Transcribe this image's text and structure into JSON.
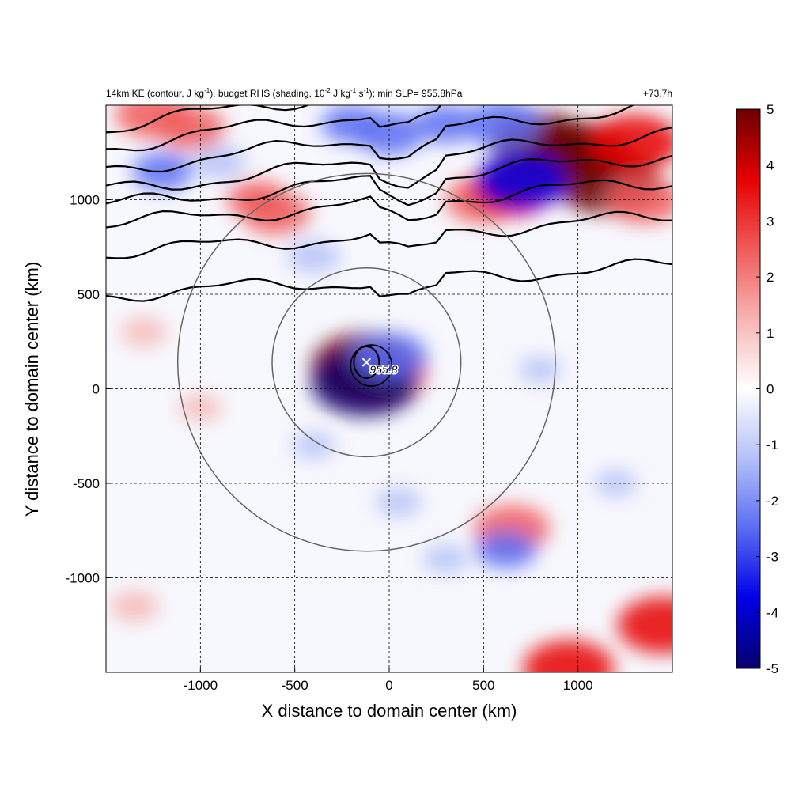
{
  "chart_data": {
    "type": "heatmap",
    "title": {
      "main": "14km KE (contour, J kg",
      "sup1": "-1",
      "mid1": "), budget RHS (shading, 10",
      "sup2": "-2",
      "mid2": " J kg",
      "sup3": "-1",
      "mid3": " s",
      "sup4": "-1",
      "tail": "); min SLP= 955.8hPa"
    },
    "time_label": "+73.7h",
    "xlabel": "X distance to domain center (km)",
    "ylabel": "Y distance to domain center (km)",
    "xlim": [
      -1500,
      1500
    ],
    "ylim": [
      -1500,
      1500
    ],
    "xticks": [
      -1000,
      -500,
      0,
      500,
      1000
    ],
    "yticks": [
      -1000,
      -500,
      0,
      500,
      1000
    ],
    "grid": "dashed",
    "colorbar": {
      "min": -5,
      "max": 5,
      "ticks": [
        5,
        4,
        3,
        2,
        1,
        0,
        -1,
        -2,
        -3,
        -4,
        -5
      ],
      "colors": [
        "#08006b",
        "#0000e6",
        "#5a6cf2",
        "#b4c0f7",
        "#ffffff",
        "#f7b4b4",
        "#f05a5a",
        "#e60000",
        "#6b0000"
      ]
    },
    "storm_center": {
      "x": -120,
      "y": 140,
      "label": "955.8"
    },
    "radius_circles_km": [
      500,
      1000
    ],
    "positive_patches": [
      {
        "x": -1250,
        "y": 1450,
        "v": 3
      },
      {
        "x": -1050,
        "y": 1380,
        "v": 2.5
      },
      {
        "x": -700,
        "y": 1000,
        "v": 2
      },
      {
        "x": -600,
        "y": 930,
        "v": 2.5
      },
      {
        "x": 500,
        "y": 1000,
        "v": 3
      },
      {
        "x": 650,
        "y": 1050,
        "v": 3.5
      },
      {
        "x": 800,
        "y": 1300,
        "v": 4.5
      },
      {
        "x": 1000,
        "y": 1250,
        "v": 4.5
      },
      {
        "x": 1150,
        "y": 1100,
        "v": 5
      },
      {
        "x": 1300,
        "y": 1300,
        "v": 4
      },
      {
        "x": 1350,
        "y": 1000,
        "v": 3
      },
      {
        "x": -130,
        "y": 120,
        "v": 5
      },
      {
        "x": -60,
        "y": 60,
        "v": 4
      },
      {
        "x": 40,
        "y": 100,
        "v": 2
      },
      {
        "x": -1300,
        "y": 300,
        "v": 1
      },
      {
        "x": -1000,
        "y": -100,
        "v": 0.8
      },
      {
        "x": -1350,
        "y": -1150,
        "v": 1.2
      },
      {
        "x": 1450,
        "y": -1250,
        "v": 4
      },
      {
        "x": 950,
        "y": -1480,
        "v": 4
      },
      {
        "x": 650,
        "y": -740,
        "v": 3
      }
    ],
    "negative_patches": [
      {
        "x": -200,
        "y": 1400,
        "v": -2
      },
      {
        "x": 0,
        "y": 1350,
        "v": -2.5
      },
      {
        "x": 300,
        "y": 1400,
        "v": -2
      },
      {
        "x": 700,
        "y": 1100,
        "v": -4
      },
      {
        "x": 600,
        "y": 1400,
        "v": -3
      },
      {
        "x": -1200,
        "y": 1150,
        "v": -2
      },
      {
        "x": -900,
        "y": 1200,
        "v": -1.5
      },
      {
        "x": -400,
        "y": 700,
        "v": -1.5
      },
      {
        "x": -130,
        "y": 30,
        "v": -5
      },
      {
        "x": 0,
        "y": 170,
        "v": -3
      },
      {
        "x": 50,
        "y": -600,
        "v": -1
      },
      {
        "x": 300,
        "y": -900,
        "v": -1
      },
      {
        "x": 620,
        "y": -850,
        "v": -2
      },
      {
        "x": -400,
        "y": -300,
        "v": -0.8
      },
      {
        "x": 800,
        "y": 100,
        "v": -0.8
      },
      {
        "x": 1200,
        "y": -500,
        "v": -0.8
      }
    ],
    "ke_contours_y_at_left_edge": [
      500,
      720,
      870,
      970,
      1050,
      1160,
      1280,
      1380
    ]
  }
}
